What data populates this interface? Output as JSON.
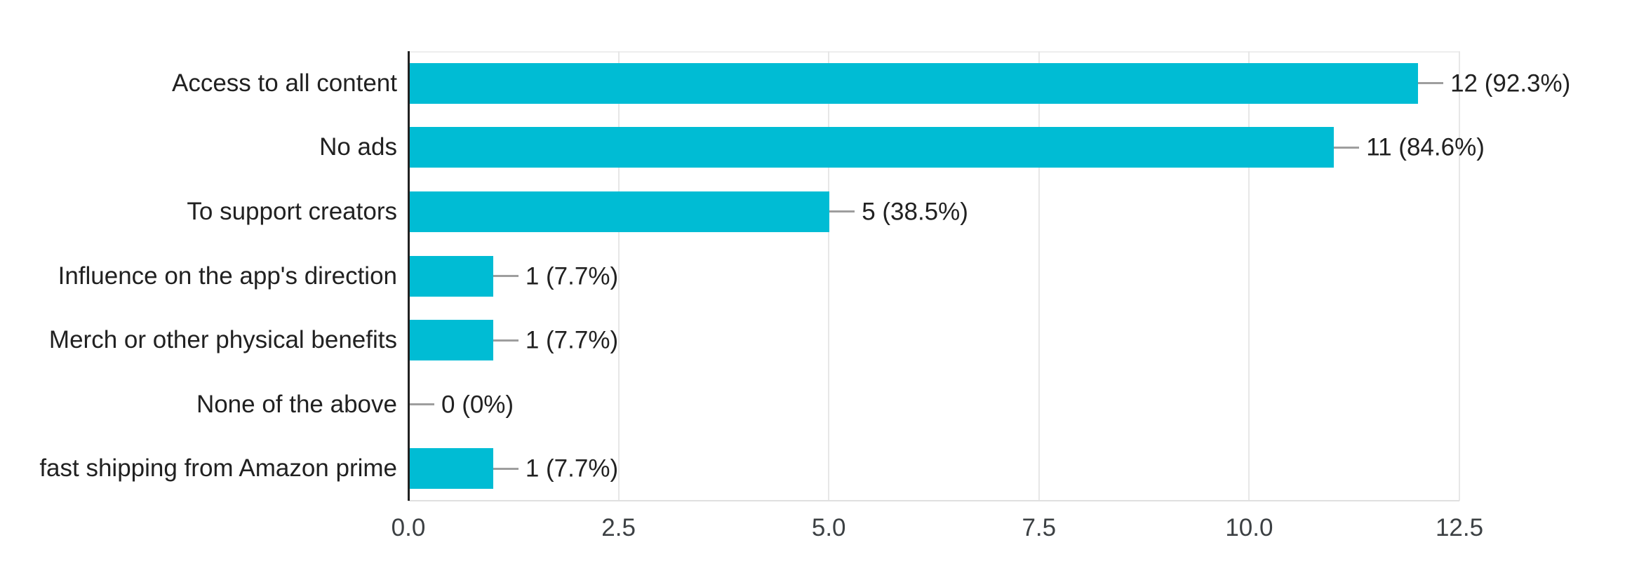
{
  "chart_data": {
    "type": "bar",
    "orientation": "horizontal",
    "title": "",
    "categories": [
      "Access to all content",
      "No ads",
      "To support creators",
      "Influence on the app's direction",
      "Merch or other physical benefits",
      "None of the above",
      "fast shipping from Amazon prime"
    ],
    "values": [
      12,
      11,
      5,
      1,
      1,
      0,
      1
    ],
    "value_labels": [
      "12 (92.3%)",
      "11 (84.6%)",
      "5 (38.5%)",
      "1 (7.7%)",
      "1 (7.7%)",
      "0 (0%)",
      "1 (7.7%)"
    ],
    "x_ticks": [
      {
        "value": 0,
        "label": "0.0"
      },
      {
        "value": 2.5,
        "label": "2.5"
      },
      {
        "value": 5,
        "label": "5.0"
      },
      {
        "value": 7.5,
        "label": "7.5"
      },
      {
        "value": 10,
        "label": "10.0"
      },
      {
        "value": 12.5,
        "label": "12.5"
      }
    ],
    "xlim": [
      0,
      12.5
    ],
    "grid": true,
    "legend": "none"
  },
  "colors": {
    "bar": "#00BCD4",
    "axis_line": "#212121",
    "gridline": "#e7e7e7",
    "top_border": "#ededed",
    "baseline": "#e0e0e0",
    "connector": "#9e9e9e",
    "category_text": "#212121",
    "value_text": "#212121",
    "tick_text": "#3c4043"
  }
}
